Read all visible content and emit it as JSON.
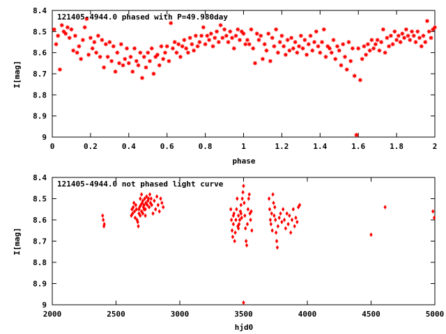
{
  "chart_data": [
    {
      "type": "scatter",
      "title": "121405-4944.0 phased with P=49.980day",
      "xlabel": "phase",
      "ylabel": "I[mag]",
      "xlim": [
        0,
        2
      ],
      "ylim": [
        8.4,
        9.0
      ],
      "y_inverted": true,
      "x_ticks": [
        "0",
        "0.2",
        "0.4",
        "0.6",
        "0.8",
        "1",
        "1.2",
        "1.4",
        "1.6",
        "1.8",
        "2"
      ],
      "y_ticks": [
        "8.4",
        "8.5",
        "8.6",
        "8.7",
        "8.8",
        "8.9",
        "9"
      ],
      "marker": "star",
      "color": "#ff0000",
      "points": [
        [
          0.01,
          8.49
        ],
        [
          0.02,
          8.56
        ],
        [
          0.03,
          8.52
        ],
        [
          0.04,
          8.68
        ],
        [
          0.05,
          8.47
        ],
        [
          0.06,
          8.5
        ],
        [
          0.07,
          8.51
        ],
        [
          0.08,
          8.48
        ],
        [
          0.09,
          8.53
        ],
        [
          0.1,
          8.49
        ],
        [
          0.11,
          8.59
        ],
        [
          0.12,
          8.52
        ],
        [
          0.13,
          8.6
        ],
        [
          0.14,
          8.57
        ],
        [
          0.15,
          8.63
        ],
        [
          0.16,
          8.54
        ],
        [
          0.17,
          8.48
        ],
        [
          0.18,
          8.44
        ],
        [
          0.19,
          8.61
        ],
        [
          0.2,
          8.53
        ],
        [
          0.21,
          8.58
        ],
        [
          0.22,
          8.55
        ],
        [
          0.23,
          8.6
        ],
        [
          0.24,
          8.52
        ],
        [
          0.25,
          8.62
        ],
        [
          0.26,
          8.54
        ],
        [
          0.27,
          8.67
        ],
        [
          0.28,
          8.56
        ],
        [
          0.29,
          8.62
        ],
        [
          0.3,
          8.55
        ],
        [
          0.31,
          8.64
        ],
        [
          0.32,
          8.57
        ],
        [
          0.33,
          8.69
        ],
        [
          0.34,
          8.6
        ],
        [
          0.35,
          8.65
        ],
        [
          0.36,
          8.56
        ],
        [
          0.37,
          8.66
        ],
        [
          0.38,
          8.63
        ],
        [
          0.39,
          8.58
        ],
        [
          0.4,
          8.65
        ],
        [
          0.41,
          8.62
        ],
        [
          0.42,
          8.69
        ],
        [
          0.43,
          8.58
        ],
        [
          0.44,
          8.64
        ],
        [
          0.45,
          8.66
        ],
        [
          0.46,
          8.6
        ],
        [
          0.47,
          8.72
        ],
        [
          0.48,
          8.62
        ],
        [
          0.49,
          8.67
        ],
        [
          0.5,
          8.6
        ],
        [
          0.51,
          8.64
        ],
        [
          0.52,
          8.58
        ],
        [
          0.53,
          8.7
        ],
        [
          0.54,
          8.62
        ],
        [
          0.55,
          8.61
        ],
        [
          0.56,
          8.66
        ],
        [
          0.57,
          8.57
        ],
        [
          0.58,
          8.63
        ],
        [
          0.59,
          8.6
        ],
        [
          0.6,
          8.57
        ],
        [
          0.61,
          8.64
        ],
        [
          0.62,
          8.46
        ],
        [
          0.63,
          8.58
        ],
        [
          0.64,
          8.55
        ],
        [
          0.65,
          8.6
        ],
        [
          0.66,
          8.56
        ],
        [
          0.67,
          8.62
        ],
        [
          0.68,
          8.57
        ],
        [
          0.69,
          8.54
        ],
        [
          0.7,
          8.58
        ],
        [
          0.71,
          8.6
        ],
        [
          0.72,
          8.53
        ],
        [
          0.73,
          8.56
        ],
        [
          0.74,
          8.59
        ],
        [
          0.75,
          8.52
        ],
        [
          0.76,
          8.57
        ],
        [
          0.77,
          8.55
        ],
        [
          0.78,
          8.52
        ],
        [
          0.79,
          8.48
        ],
        [
          0.8,
          8.56
        ],
        [
          0.81,
          8.52
        ],
        [
          0.82,
          8.54
        ],
        [
          0.83,
          8.51
        ],
        [
          0.84,
          8.57
        ],
        [
          0.85,
          8.53
        ],
        [
          0.86,
          8.5
        ],
        [
          0.87,
          8.55
        ],
        [
          0.88,
          8.47
        ],
        [
          0.89,
          8.53
        ],
        [
          0.9,
          8.49
        ],
        [
          0.91,
          8.52
        ],
        [
          0.92,
          8.55
        ],
        [
          0.93,
          8.5
        ],
        [
          0.94,
          8.53
        ],
        [
          0.95,
          8.58
        ],
        [
          0.96,
          8.52
        ],
        [
          0.97,
          8.49
        ],
        [
          0.98,
          8.54
        ],
        [
          0.99,
          8.5
        ],
        [
          1.0,
          8.51
        ],
        [
          1.01,
          8.56
        ],
        [
          1.02,
          8.54
        ],
        [
          1.03,
          8.56
        ],
        [
          1.04,
          8.49
        ],
        [
          1.05,
          8.58
        ],
        [
          1.06,
          8.65
        ],
        [
          1.07,
          8.51
        ],
        [
          1.08,
          8.54
        ],
        [
          1.09,
          8.52
        ],
        [
          1.1,
          8.63
        ],
        [
          1.11,
          8.56
        ],
        [
          1.12,
          8.59
        ],
        [
          1.13,
          8.51
        ],
        [
          1.14,
          8.64
        ],
        [
          1.15,
          8.53
        ],
        [
          1.16,
          8.57
        ],
        [
          1.17,
          8.49
        ],
        [
          1.18,
          8.6
        ],
        [
          1.19,
          8.55
        ],
        [
          1.2,
          8.52
        ],
        [
          1.21,
          8.57
        ],
        [
          1.22,
          8.61
        ],
        [
          1.23,
          8.54
        ],
        [
          1.24,
          8.59
        ],
        [
          1.25,
          8.53
        ],
        [
          1.26,
          8.58
        ],
        [
          1.27,
          8.55
        ],
        [
          1.28,
          8.6
        ],
        [
          1.29,
          8.57
        ],
        [
          1.3,
          8.52
        ],
        [
          1.31,
          8.58
        ],
        [
          1.32,
          8.54
        ],
        [
          1.33,
          8.61
        ],
        [
          1.34,
          8.56
        ],
        [
          1.35,
          8.52
        ],
        [
          1.36,
          8.59
        ],
        [
          1.37,
          8.55
        ],
        [
          1.38,
          8.5
        ],
        [
          1.39,
          8.57
        ],
        [
          1.4,
          8.6
        ],
        [
          1.41,
          8.55
        ],
        [
          1.42,
          8.49
        ],
        [
          1.43,
          8.62
        ],
        [
          1.44,
          8.57
        ],
        [
          1.45,
          8.58
        ],
        [
          1.46,
          8.6
        ],
        [
          1.47,
          8.54
        ],
        [
          1.48,
          8.63
        ],
        [
          1.49,
          8.57
        ],
        [
          1.5,
          8.59
        ],
        [
          1.51,
          8.66
        ],
        [
          1.52,
          8.56
        ],
        [
          1.53,
          8.62
        ],
        [
          1.54,
          8.68
        ],
        [
          1.55,
          8.55
        ],
        [
          1.56,
          8.64
        ],
        [
          1.57,
          8.58
        ],
        [
          1.58,
          8.71
        ],
        [
          1.59,
          8.99
        ],
        [
          1.6,
          8.58
        ],
        [
          1.61,
          8.73
        ],
        [
          1.62,
          8.63
        ],
        [
          1.63,
          8.57
        ],
        [
          1.64,
          8.61
        ],
        [
          1.65,
          8.56
        ],
        [
          1.66,
          8.59
        ],
        [
          1.67,
          8.54
        ],
        [
          1.68,
          8.58
        ],
        [
          1.69,
          8.56
        ],
        [
          1.7,
          8.54
        ],
        [
          1.71,
          8.59
        ],
        [
          1.72,
          8.55
        ],
        [
          1.73,
          8.49
        ],
        [
          1.74,
          8.6
        ],
        [
          1.75,
          8.53
        ],
        [
          1.76,
          8.57
        ],
        [
          1.77,
          8.52
        ],
        [
          1.78,
          8.56
        ],
        [
          1.79,
          8.5
        ],
        [
          1.8,
          8.54
        ],
        [
          1.81,
          8.52
        ],
        [
          1.82,
          8.55
        ],
        [
          1.83,
          8.51
        ],
        [
          1.84,
          8.53
        ],
        [
          1.85,
          8.49
        ],
        [
          1.86,
          8.52
        ],
        [
          1.87,
          8.54
        ],
        [
          1.88,
          8.5
        ],
        [
          1.89,
          8.52
        ],
        [
          1.9,
          8.55
        ],
        [
          1.91,
          8.5
        ],
        [
          1.92,
          8.53
        ],
        [
          1.93,
          8.57
        ],
        [
          1.94,
          8.52
        ],
        [
          1.95,
          8.55
        ],
        [
          1.96,
          8.45
        ],
        [
          1.97,
          8.5
        ],
        [
          1.98,
          8.53
        ],
        [
          1.99,
          8.49
        ],
        [
          2.0,
          8.48
        ]
      ]
    },
    {
      "type": "scatter",
      "title": "121405-4944.0 not phased light curve",
      "xlabel": "hjd0",
      "ylabel": "I[mag]",
      "xlim": [
        2000,
        5000
      ],
      "ylim": [
        8.4,
        9.0
      ],
      "y_inverted": true,
      "x_ticks": [
        "2000",
        "2500",
        "3000",
        "3500",
        "4000",
        "4500",
        "5000"
      ],
      "y_ticks": [
        "8.4",
        "8.5",
        "8.6",
        "8.7",
        "8.8",
        "8.9",
        "9"
      ],
      "marker": "diamond",
      "color": "#ff0000",
      "points": [
        [
          2395,
          8.58
        ],
        [
          2400,
          8.6
        ],
        [
          2405,
          8.63
        ],
        [
          2408,
          8.62
        ],
        [
          2620,
          8.58
        ],
        [
          2625,
          8.55
        ],
        [
          2630,
          8.57
        ],
        [
          2635,
          8.54
        ],
        [
          2640,
          8.52
        ],
        [
          2645,
          8.56
        ],
        [
          2650,
          8.59
        ],
        [
          2655,
          8.53
        ],
        [
          2660,
          8.55
        ],
        [
          2665,
          8.6
        ],
        [
          2670,
          8.61
        ],
        [
          2675,
          8.63
        ],
        [
          2680,
          8.57
        ],
        [
          2685,
          8.54
        ],
        [
          2690,
          8.5
        ],
        [
          2695,
          8.53
        ],
        [
          2700,
          8.48
        ],
        [
          2705,
          8.52
        ],
        [
          2710,
          8.51
        ],
        [
          2715,
          8.54
        ],
        [
          2720,
          8.53
        ],
        [
          2725,
          8.5
        ],
        [
          2730,
          8.55
        ],
        [
          2735,
          8.52
        ],
        [
          2740,
          8.49
        ],
        [
          2745,
          8.53
        ],
        [
          2750,
          8.51
        ],
        [
          2755,
          8.5
        ],
        [
          2760,
          8.54
        ],
        [
          2765,
          8.48
        ],
        [
          2770,
          8.52
        ],
        [
          2775,
          8.5
        ],
        [
          2780,
          8.53
        ],
        [
          2790,
          8.57
        ],
        [
          2800,
          8.51
        ],
        [
          2810,
          8.55
        ],
        [
          2820,
          8.49
        ],
        [
          2830,
          8.53
        ],
        [
          2840,
          8.56
        ],
        [
          2850,
          8.5
        ],
        [
          2860,
          8.52
        ],
        [
          2870,
          8.54
        ],
        [
          2680,
          8.55
        ],
        [
          2690,
          8.58
        ],
        [
          2700,
          8.56
        ],
        [
          2710,
          8.57
        ],
        [
          2720,
          8.55
        ],
        [
          2730,
          8.58
        ],
        [
          3400,
          8.55
        ],
        [
          3405,
          8.6
        ],
        [
          3410,
          8.65
        ],
        [
          3415,
          8.68
        ],
        [
          3420,
          8.62
        ],
        [
          3425,
          8.57
        ],
        [
          3430,
          8.7
        ],
        [
          3435,
          8.66
        ],
        [
          3440,
          8.6
        ],
        [
          3445,
          8.55
        ],
        [
          3450,
          8.5
        ],
        [
          3455,
          8.63
        ],
        [
          3460,
          8.58
        ],
        [
          3465,
          8.62
        ],
        [
          3470,
          8.6
        ],
        [
          3475,
          8.56
        ],
        [
          3480,
          8.53
        ],
        [
          3485,
          8.59
        ],
        [
          3490,
          8.5
        ],
        [
          3495,
          8.47
        ],
        [
          3500,
          8.44
        ],
        [
          3505,
          8.52
        ],
        [
          3510,
          8.58
        ],
        [
          3515,
          8.64
        ],
        [
          3520,
          8.7
        ],
        [
          3525,
          8.72
        ],
        [
          3530,
          8.62
        ],
        [
          3535,
          8.55
        ],
        [
          3540,
          8.5
        ],
        [
          3545,
          8.48
        ],
        [
          3550,
          8.57
        ],
        [
          3555,
          8.6
        ],
        [
          3560,
          8.56
        ],
        [
          3565,
          8.65
        ],
        [
          3500,
          8.99
        ],
        [
          3420,
          8.58
        ],
        [
          3460,
          8.64
        ],
        [
          3480,
          8.57
        ],
        [
          3700,
          8.5
        ],
        [
          3705,
          8.55
        ],
        [
          3710,
          8.6
        ],
        [
          3715,
          8.62
        ],
        [
          3720,
          8.57
        ],
        [
          3725,
          8.65
        ],
        [
          3730,
          8.48
        ],
        [
          3735,
          8.52
        ],
        [
          3740,
          8.58
        ],
        [
          3745,
          8.54
        ],
        [
          3750,
          8.6
        ],
        [
          3755,
          8.66
        ],
        [
          3760,
          8.7
        ],
        [
          3765,
          8.73
        ],
        [
          3770,
          8.63
        ],
        [
          3780,
          8.59
        ],
        [
          3790,
          8.57
        ],
        [
          3800,
          8.61
        ],
        [
          3810,
          8.55
        ],
        [
          3820,
          8.6
        ],
        [
          3830,
          8.64
        ],
        [
          3840,
          8.57
        ],
        [
          3850,
          8.62
        ],
        [
          3860,
          8.58
        ],
        [
          3870,
          8.66
        ],
        [
          3880,
          8.6
        ],
        [
          3890,
          8.55
        ],
        [
          3900,
          8.63
        ],
        [
          3910,
          8.59
        ],
        [
          3920,
          8.61
        ],
        [
          3930,
          8.54
        ],
        [
          3940,
          8.53
        ],
        [
          4500,
          8.67
        ],
        [
          4610,
          8.54
        ],
        [
          4985,
          8.56
        ],
        [
          4995,
          8.59
        ]
      ]
    }
  ]
}
